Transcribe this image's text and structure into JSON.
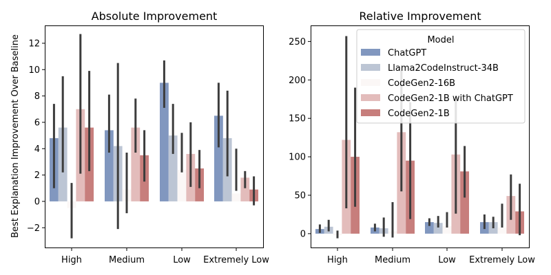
{
  "chart_data": [
    {
      "type": "bar",
      "title": "Absolute Improvement",
      "ylabel": "Best Explanation Improvement Over Baseline",
      "xlabel": "",
      "categories": [
        "High",
        "Medium",
        "Low",
        "Extremely Low"
      ],
      "ylim": [
        -3.5,
        13.3
      ],
      "yticks": [
        -2,
        0,
        2,
        4,
        6,
        8,
        10,
        12
      ],
      "series": [
        {
          "name": "ChatGPT",
          "values": [
            4.8,
            5.4,
            9.0,
            6.5
          ],
          "err_low": [
            1.0,
            3.7,
            7.1,
            4.1
          ],
          "err_high": [
            7.4,
            8.1,
            10.7,
            9.0
          ]
        },
        {
          "name": "Llama2CodeInstruct-34B",
          "values": [
            5.6,
            4.2,
            5.0,
            4.8
          ],
          "err_low": [
            2.2,
            -2.1,
            3.6,
            1.9
          ],
          "err_high": [
            9.5,
            10.5,
            7.4,
            8.4
          ]
        },
        {
          "name": "CodeGen2-16B",
          "values": [
            -0.5,
            0.9,
            2.4,
            0.6
          ],
          "err_low": [
            -2.8,
            -0.9,
            2.2,
            0.8
          ],
          "err_high": [
            1.4,
            3.7,
            5.2,
            4.0
          ]
        },
        {
          "name": "CodeGen2-1B with ChatGPT",
          "values": [
            7.0,
            5.6,
            3.6,
            1.8
          ],
          "err_low": [
            2.1,
            3.7,
            1.1,
            1.0
          ],
          "err_high": [
            12.7,
            7.8,
            6.0,
            2.3
          ]
        },
        {
          "name": "CodeGen2-1B",
          "values": [
            5.6,
            3.5,
            2.5,
            0.9
          ],
          "err_low": [
            2.3,
            1.5,
            1.0,
            -0.3
          ],
          "err_high": [
            9.9,
            5.4,
            3.9,
            1.9
          ]
        }
      ]
    },
    {
      "type": "bar",
      "title": "Relative Improvement",
      "ylabel": "",
      "xlabel": "",
      "categories": [
        "High",
        "Medium",
        "Low",
        "Extremely Low"
      ],
      "ylim": [
        -18,
        270
      ],
      "yticks": [
        0,
        50,
        100,
        150,
        200,
        250
      ],
      "series": [
        {
          "name": "ChatGPT",
          "values": [
            6,
            8,
            15,
            15
          ],
          "err_low": [
            1,
            3,
            10,
            6
          ],
          "err_high": [
            12,
            13,
            20,
            25
          ]
        },
        {
          "name": "Llama2CodeInstruct-34B",
          "values": [
            9,
            7,
            14,
            15
          ],
          "err_low": [
            3,
            -4,
            8,
            7
          ],
          "err_high": [
            18,
            21,
            23,
            22
          ]
        },
        {
          "name": "CodeGen2-16B",
          "values": [
            -2,
            3,
            10,
            8
          ],
          "err_low": [
            -6,
            -5,
            8,
            8
          ],
          "err_high": [
            4,
            41,
            28,
            39
          ]
        },
        {
          "name": "CodeGen2-1B with ChatGPT",
          "values": [
            122,
            132,
            103,
            49
          ],
          "err_low": [
            33,
            55,
            26,
            18
          ],
          "err_high": [
            257,
            212,
            178,
            77
          ]
        },
        {
          "name": "CodeGen2-1B",
          "values": [
            100,
            95,
            81,
            29
          ],
          "err_low": [
            35,
            19,
            47,
            -2
          ],
          "err_high": [
            190,
            171,
            114,
            65
          ]
        }
      ],
      "legend": {
        "title": "Model",
        "position": "upper-right"
      }
    }
  ],
  "colors": [
    "#8197bf",
    "#bcc5d4",
    "#fbf7f6",
    "#e3bcbb",
    "#c77e7c"
  ]
}
